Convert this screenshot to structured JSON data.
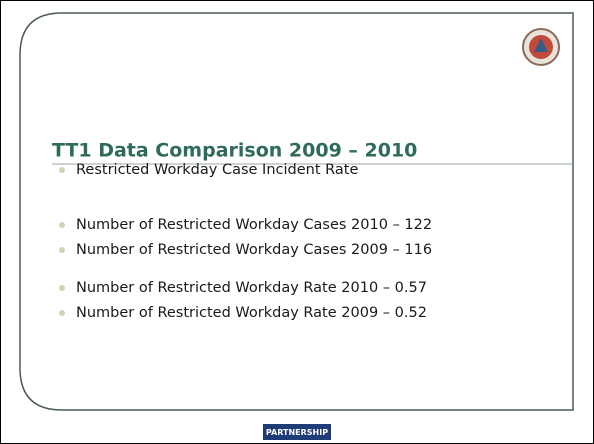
{
  "slide": {
    "title": "TT1 Data Comparison 2009 – 2010",
    "bullets": [
      "Restricted Workday Case Incident Rate",
      "Number of Restricted Workday Cases 2010 – 122",
      "Number of Restricted Workday Cases 2009 – 116",
      "Number of Restricted Workday Rate 2010 – 0.57",
      "Number of Restricted Workday Rate 2009 – 0.52"
    ],
    "footer": "PARTNERSHIP"
  }
}
